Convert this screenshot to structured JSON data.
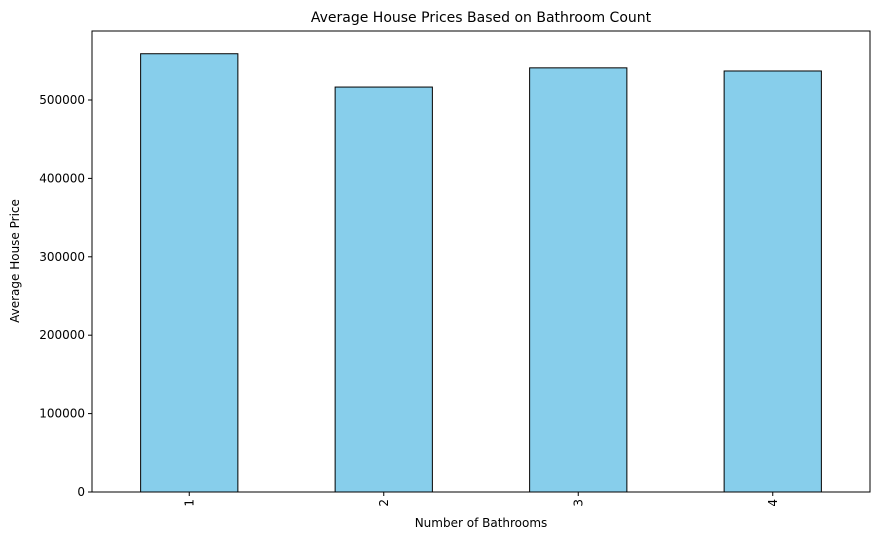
{
  "chart_data": {
    "type": "bar",
    "title": "Average House Prices Based on Bathroom Count",
    "xlabel": "Number of Bathrooms",
    "ylabel": "Average House Price",
    "categories": [
      "1",
      "2",
      "3",
      "4"
    ],
    "values": [
      559000,
      516500,
      541000,
      537000
    ],
    "ylim": [
      0,
      588000
    ],
    "yticks": [
      0,
      100000,
      200000,
      300000,
      400000,
      500000
    ],
    "ytick_labels": [
      "0",
      "100000",
      "200000",
      "300000",
      "400000",
      "500000"
    ],
    "x_tick_rotation": "vertical",
    "grid": false,
    "legend": "none",
    "bar_color": "#87CEEB",
    "bar_edge_color": "#000000"
  }
}
